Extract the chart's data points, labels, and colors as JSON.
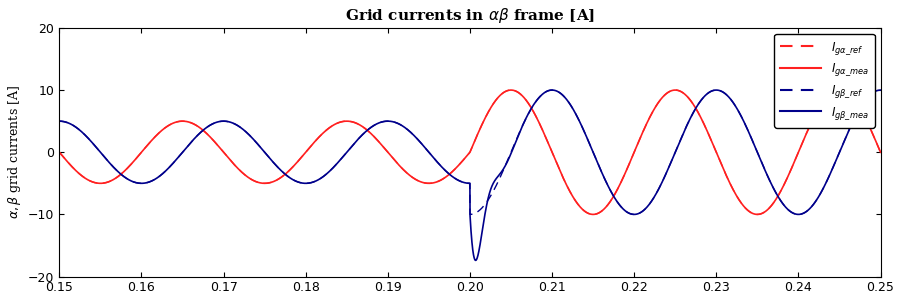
{
  "title": "Grid currents in $\\alpha\\beta$ frame [A]",
  "ylabel": "$\\alpha,\\beta$ grid currents [A]",
  "xlim": [
    0.15,
    0.25
  ],
  "ylim": [
    -20,
    20
  ],
  "yticks": [
    -20,
    -10,
    0,
    10,
    20
  ],
  "xticks": [
    0.15,
    0.16,
    0.17,
    0.18,
    0.19,
    0.2,
    0.21,
    0.22,
    0.23,
    0.24,
    0.25
  ],
  "freq": 50,
  "amp_small": 5.0,
  "amp_large": 10.0,
  "t_step": 0.2,
  "color_alpha": "#FF2020",
  "color_beta": "#00008B",
  "legend_labels": [
    "I_{g\\alpha\\_ref}",
    "I_{g\\alpha\\_mea}",
    "I_{g\\beta\\_ref}",
    "I_{g\\beta\\_mea}"
  ],
  "background_color": "#FFFFFF",
  "title_fontsize": 11,
  "label_fontsize": 9,
  "legend_fontsize": 8.5,
  "linewidth_ref": 1.0,
  "linewidth_mea": 1.2
}
